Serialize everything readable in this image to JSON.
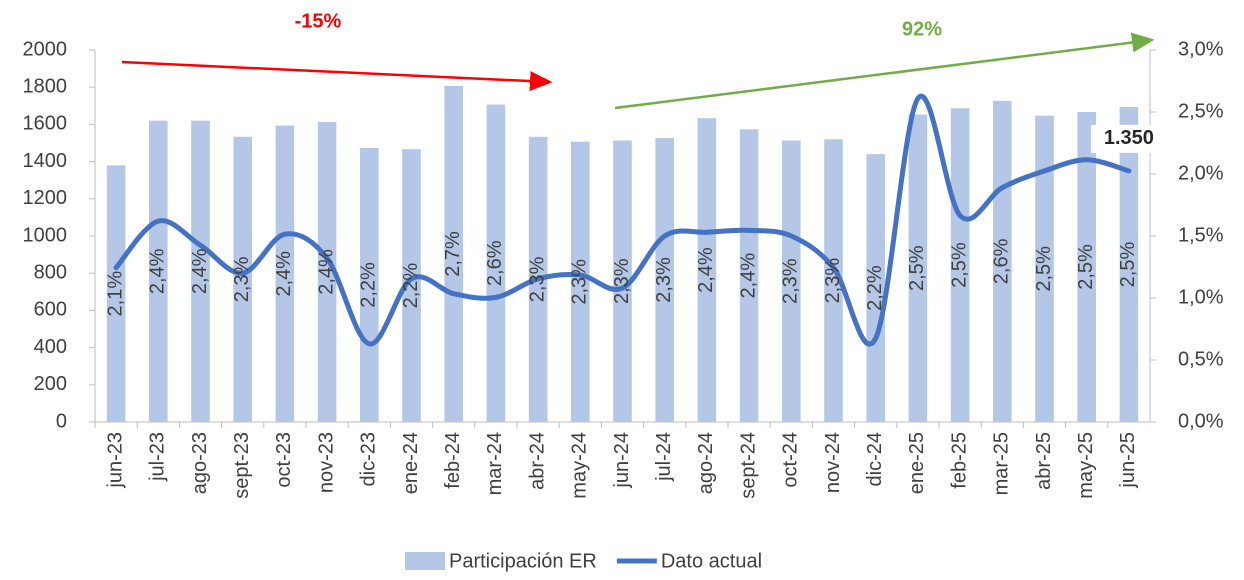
{
  "chart_data": {
    "type": "bar_line",
    "categories": [
      "jun-23",
      "jul-23",
      "ago-23",
      "sept-23",
      "oct-23",
      "nov-23",
      "dic-23",
      "ene-24",
      "feb-24",
      "mar-24",
      "abr-24",
      "may-24",
      "jun-24",
      "jul-24",
      "ago-24",
      "sept-24",
      "oct-24",
      "nov-24",
      "dic-24",
      "ene-25",
      "feb-25",
      "mar-25",
      "abr-25",
      "may-25",
      "jun-25"
    ],
    "series": [
      {
        "name": "Participación ER",
        "type": "bar",
        "axis": "y2",
        "color": "#b4c7e7",
        "values": [
          2.07,
          2.43,
          2.43,
          2.3,
          2.39,
          2.42,
          2.21,
          2.2,
          2.71,
          2.56,
          2.3,
          2.26,
          2.27,
          2.29,
          2.45,
          2.36,
          2.27,
          2.28,
          2.16,
          2.48,
          2.53,
          2.59,
          2.47,
          2.5,
          2.54
        ],
        "value_labels": [
          "2,1%",
          "2,4%",
          "2,4%",
          "2,3%",
          "2,4%",
          "2,4%",
          "2,2%",
          "2,2%",
          "2,7%",
          "2,6%",
          "2,3%",
          "2,3%",
          "2,3%",
          "2,3%",
          "2,4%",
          "2,4%",
          "2,3%",
          "2,3%",
          "2,2%",
          "2,5%",
          "2,5%",
          "2,6%",
          "2,5%",
          "2,5%",
          "2,5%"
        ]
      },
      {
        "name": "Dato actual",
        "type": "line",
        "axis": "y",
        "color": "#4472c4",
        "values": [
          830,
          1080,
          950,
          800,
          1010,
          880,
          420,
          770,
          690,
          670,
          770,
          790,
          720,
          1000,
          1020,
          1030,
          1000,
          830,
          450,
          1740,
          1110,
          1260,
          1350,
          1410,
          1350
        ],
        "value_labels": [
          null,
          null,
          null,
          null,
          null,
          null,
          null,
          null,
          null,
          null,
          null,
          null,
          null,
          null,
          null,
          null,
          null,
          null,
          null,
          null,
          null,
          null,
          null,
          null,
          "1.350"
        ]
      }
    ],
    "ylim": [
      0,
      2000
    ],
    "yticks": [
      0,
      200,
      400,
      600,
      800,
      1000,
      1200,
      1400,
      1600,
      1800,
      2000
    ],
    "y2lim": [
      0,
      3
    ],
    "y2ticks": [
      {
        "value": 0,
        "label": "0,0%"
      },
      {
        "value": 0.5,
        "label": "0,5%"
      },
      {
        "value": 1,
        "label": "1,0%"
      },
      {
        "value": 1.5,
        "label": "1,5%"
      },
      {
        "value": 2,
        "label": "2,0%"
      },
      {
        "value": 2.5,
        "label": "2,5%"
      },
      {
        "value": 3,
        "label": "3,0%"
      }
    ],
    "annotations": [
      {
        "text": "-15%",
        "color": "#ff0000"
      },
      {
        "text": "92%",
        "color": "#70ad47"
      }
    ],
    "legend": "bottom"
  }
}
